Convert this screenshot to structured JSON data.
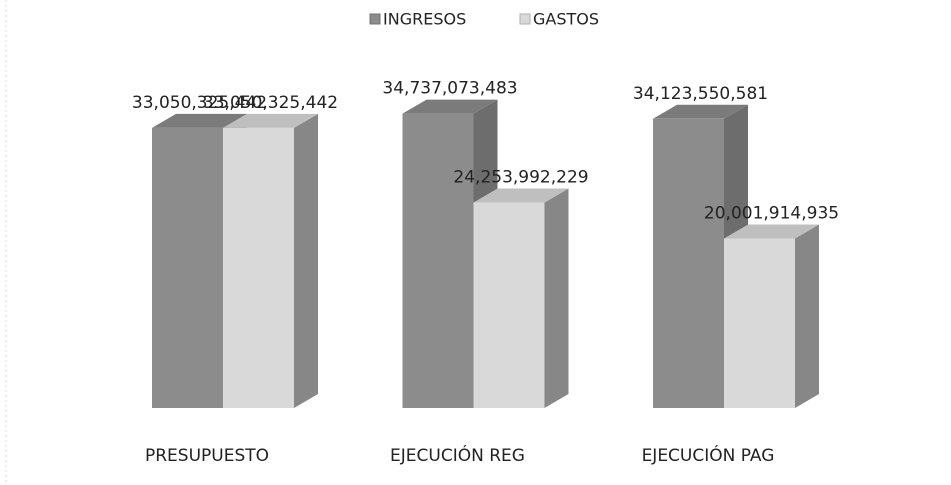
{
  "chart_data": {
    "type": "bar3d",
    "categories": [
      "PRESUPUESTO",
      "EJECUCIÓN REG",
      "EJECUCIÓN PAG"
    ],
    "series": [
      {
        "name": "INGRESOS",
        "color": "#8c8c8c",
        "values": [
          33050325442,
          34737073483,
          34123550581
        ],
        "value_labels": [
          "33,050,325,442",
          "34,737,073,483",
          "34,123,550,581"
        ]
      },
      {
        "name": "GASTOS",
        "color": "#d9d9d9",
        "values": [
          33050325442,
          24253992229,
          20001914935
        ],
        "value_labels": [
          "33,050,325,442",
          "24,253,992,229",
          "20,001,914,935"
        ]
      }
    ],
    "ylim": [
      0,
      40000000000
    ],
    "legend": "top"
  }
}
